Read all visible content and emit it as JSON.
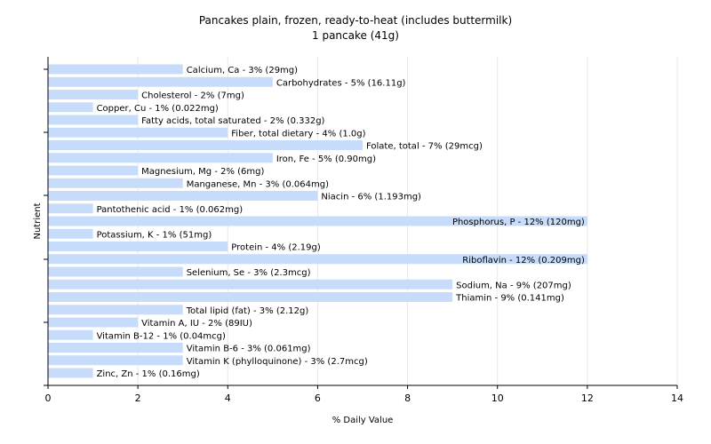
{
  "chart_data": {
    "type": "bar",
    "orientation": "horizontal",
    "title": "Pancakes plain, frozen, ready-to-heat (includes buttermilk)",
    "subtitle": "1 pancake (41g)",
    "xlabel": "% Daily Value",
    "ylabel": "Nutrient",
    "xlim": [
      0,
      14
    ],
    "xticks": [
      0,
      2,
      4,
      6,
      8,
      10,
      12,
      14
    ],
    "grid": true,
    "bar_color": "#c6dcfa",
    "bars": [
      {
        "label": "Calcium, Ca - 3% (29mg)",
        "value": 3
      },
      {
        "label": "Carbohydrates - 5% (16.11g)",
        "value": 5
      },
      {
        "label": "Cholesterol - 2% (7mg)",
        "value": 2
      },
      {
        "label": "Copper, Cu - 1% (0.022mg)",
        "value": 1
      },
      {
        "label": "Fatty acids, total saturated - 2% (0.332g)",
        "value": 2
      },
      {
        "label": "Fiber, total dietary - 4% (1.0g)",
        "value": 4
      },
      {
        "label": "Folate, total - 7% (29mcg)",
        "value": 7
      },
      {
        "label": "Iron, Fe - 5% (0.90mg)",
        "value": 5
      },
      {
        "label": "Magnesium, Mg - 2% (6mg)",
        "value": 2
      },
      {
        "label": "Manganese, Mn - 3% (0.064mg)",
        "value": 3
      },
      {
        "label": "Niacin - 6% (1.193mg)",
        "value": 6
      },
      {
        "label": "Pantothenic acid - 1% (0.062mg)",
        "value": 1
      },
      {
        "label": "Phosphorus, P - 12% (120mg)",
        "value": 12
      },
      {
        "label": "Potassium, K - 1% (51mg)",
        "value": 1
      },
      {
        "label": "Protein - 4% (2.19g)",
        "value": 4
      },
      {
        "label": "Riboflavin - 12% (0.209mg)",
        "value": 12
      },
      {
        "label": "Selenium, Se - 3% (2.3mcg)",
        "value": 3
      },
      {
        "label": "Sodium, Na - 9% (207mg)",
        "value": 9
      },
      {
        "label": "Thiamin - 9% (0.141mg)",
        "value": 9
      },
      {
        "label": "Total lipid (fat) - 3% (2.12g)",
        "value": 3
      },
      {
        "label": "Vitamin A, IU - 2% (89IU)",
        "value": 2
      },
      {
        "label": "Vitamin B-12 - 1% (0.04mcg)",
        "value": 1
      },
      {
        "label": "Vitamin B-6 - 3% (0.061mg)",
        "value": 3
      },
      {
        "label": "Vitamin K (phylloquinone) - 3% (2.7mcg)",
        "value": 3
      },
      {
        "label": "Zinc, Zn - 1% (0.16mg)",
        "value": 1
      }
    ]
  }
}
